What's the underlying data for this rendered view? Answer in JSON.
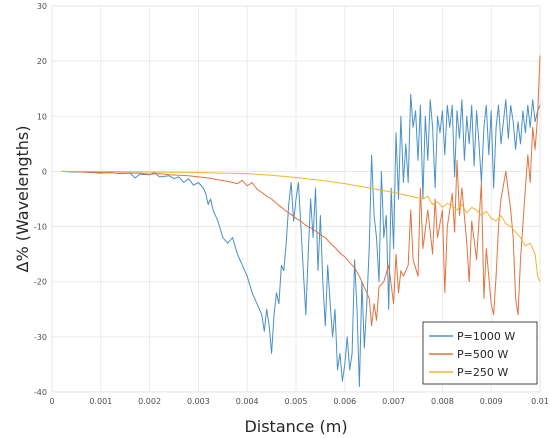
{
  "chart_data": {
    "type": "line",
    "xlabel": "Distance (m)",
    "ylabel": "Δ% (Wavelengths)",
    "xlim": [
      0,
      0.01
    ],
    "ylim": [
      -40,
      30
    ],
    "x_ticks": [
      "0",
      "0.001",
      "0.002",
      "0.003",
      "0.004",
      "0.005",
      "0.006",
      "0.007",
      "0.008",
      "0.009",
      "0.01"
    ],
    "y_ticks": [
      "-40",
      "-30",
      "-20",
      "-10",
      "0",
      "10",
      "20",
      "30"
    ],
    "grid": true,
    "legend_position": "bottom-right",
    "series": [
      {
        "name": "P=1000 W",
        "color": "#4a90c8",
        "points": [
          [
            0.0002,
            0
          ],
          [
            0.0004,
            -0.1
          ],
          [
            0.0006,
            -0.1
          ],
          [
            0.0008,
            -0.2
          ],
          [
            0.001,
            -0.3
          ],
          [
            0.0012,
            -0.2
          ],
          [
            0.0014,
            -0.4
          ],
          [
            0.0016,
            -0.3
          ],
          [
            0.0017,
            -1.2
          ],
          [
            0.0018,
            -0.5
          ],
          [
            0.002,
            -0.6
          ],
          [
            0.0021,
            -0.2
          ],
          [
            0.0022,
            -1
          ],
          [
            0.0024,
            -0.8
          ],
          [
            0.0025,
            -1.3
          ],
          [
            0.0026,
            -1
          ],
          [
            0.0027,
            -2
          ],
          [
            0.0028,
            -1.3
          ],
          [
            0.0029,
            -2.5
          ],
          [
            0.003,
            -2
          ],
          [
            0.0031,
            -3
          ],
          [
            0.00315,
            -4
          ],
          [
            0.0032,
            -6
          ],
          [
            0.00325,
            -5
          ],
          [
            0.0033,
            -7
          ],
          [
            0.0034,
            -9
          ],
          [
            0.0035,
            -12
          ],
          [
            0.0036,
            -13
          ],
          [
            0.0037,
            -12
          ],
          [
            0.0038,
            -15
          ],
          [
            0.0039,
            -17
          ],
          [
            0.004,
            -19
          ],
          [
            0.0041,
            -22
          ],
          [
            0.0042,
            -24
          ],
          [
            0.0043,
            -26
          ],
          [
            0.00435,
            -29
          ],
          [
            0.0044,
            -25
          ],
          [
            0.00445,
            -28
          ],
          [
            0.0045,
            -33
          ],
          [
            0.00455,
            -26
          ],
          [
            0.0046,
            -22
          ],
          [
            0.00465,
            -24
          ],
          [
            0.0047,
            -17
          ],
          [
            0.00475,
            -18
          ],
          [
            0.0048,
            -13
          ],
          [
            0.00485,
            -6
          ],
          [
            0.0049,
            -2
          ],
          [
            0.00495,
            -9
          ],
          [
            0.005,
            -5
          ],
          [
            0.00505,
            -2
          ],
          [
            0.0051,
            -10
          ],
          [
            0.00515,
            -18
          ],
          [
            0.0052,
            -26
          ],
          [
            0.00525,
            -15
          ],
          [
            0.0053,
            -5
          ],
          [
            0.00535,
            -12
          ],
          [
            0.0054,
            -3
          ],
          [
            0.00545,
            -18
          ],
          [
            0.0055,
            -8
          ],
          [
            0.00555,
            -20
          ],
          [
            0.0056,
            -28
          ],
          [
            0.00565,
            -17
          ],
          [
            0.0057,
            -24
          ],
          [
            0.00575,
            -30
          ],
          [
            0.0058,
            -25
          ],
          [
            0.00585,
            -36
          ],
          [
            0.0059,
            -33
          ],
          [
            0.00595,
            -38
          ],
          [
            0.006,
            -35
          ],
          [
            0.00605,
            -30
          ],
          [
            0.0061,
            -36
          ],
          [
            0.00615,
            -33
          ],
          [
            0.0062,
            -16
          ],
          [
            0.00625,
            -25
          ],
          [
            0.0063,
            -39
          ],
          [
            0.00635,
            -20
          ],
          [
            0.0064,
            -32
          ],
          [
            0.00645,
            -24
          ],
          [
            0.0065,
            -14
          ],
          [
            0.00655,
            3
          ],
          [
            0.0066,
            -8
          ],
          [
            0.00665,
            -12
          ],
          [
            0.0067,
            -20
          ],
          [
            0.00675,
            0
          ],
          [
            0.0068,
            -12
          ],
          [
            0.00685,
            -8
          ],
          [
            0.0069,
            -25
          ],
          [
            0.00695,
            -3
          ],
          [
            0.007,
            -14
          ],
          [
            0.00705,
            7
          ],
          [
            0.0071,
            -5
          ],
          [
            0.00715,
            10
          ],
          [
            0.0072,
            -2
          ],
          [
            0.00725,
            5
          ],
          [
            0.0073,
            -2
          ],
          [
            0.00735,
            14
          ],
          [
            0.0074,
            8
          ],
          [
            0.00745,
            11
          ],
          [
            0.0075,
            2
          ],
          [
            0.00755,
            12
          ],
          [
            0.0076,
            -5
          ],
          [
            0.00765,
            10
          ],
          [
            0.0077,
            2
          ],
          [
            0.00775,
            13
          ],
          [
            0.0078,
            8
          ],
          [
            0.00785,
            -3
          ],
          [
            0.0079,
            10
          ],
          [
            0.00795,
            7
          ],
          [
            0.008,
            11
          ],
          [
            0.00805,
            3
          ],
          [
            0.0081,
            12
          ],
          [
            0.00815,
            8
          ],
          [
            0.0082,
            12
          ],
          [
            0.00825,
            -1
          ],
          [
            0.0083,
            11
          ],
          [
            0.00835,
            6
          ],
          [
            0.0084,
            13
          ],
          [
            0.00845,
            2
          ],
          [
            0.0085,
            10
          ],
          [
            0.00855,
            5
          ],
          [
            0.0086,
            12
          ],
          [
            0.00865,
            1
          ],
          [
            0.0087,
            11
          ],
          [
            0.00875,
            5
          ],
          [
            0.0088,
            -2
          ],
          [
            0.00885,
            8
          ],
          [
            0.0089,
            12
          ],
          [
            0.00895,
            3
          ],
          [
            0.009,
            11
          ],
          [
            0.00905,
            -3
          ],
          [
            0.0091,
            8
          ],
          [
            0.00915,
            12
          ],
          [
            0.0092,
            5
          ],
          [
            0.00925,
            9
          ],
          [
            0.0093,
            13
          ],
          [
            0.00935,
            6
          ],
          [
            0.0094,
            12
          ],
          [
            0.00945,
            9
          ],
          [
            0.0095,
            4
          ],
          [
            0.00955,
            9
          ],
          [
            0.0096,
            5
          ],
          [
            0.00965,
            11
          ],
          [
            0.0097,
            7
          ],
          [
            0.00975,
            12
          ],
          [
            0.0098,
            8
          ],
          [
            0.00985,
            13
          ],
          [
            0.0099,
            9
          ],
          [
            0.00995,
            11
          ],
          [
            0.01,
            12
          ]
        ]
      },
      {
        "name": "P=500 W",
        "color": "#e0743e",
        "points": [
          [
            0.0002,
            0
          ],
          [
            0.0006,
            -0.1
          ],
          [
            0.001,
            -0.2
          ],
          [
            0.0014,
            -0.3
          ],
          [
            0.0018,
            -0.3
          ],
          [
            0.002,
            -0.5
          ],
          [
            0.0022,
            -0.4
          ],
          [
            0.0024,
            -0.6
          ],
          [
            0.0026,
            -0.7
          ],
          [
            0.0028,
            -0.8
          ],
          [
            0.003,
            -1
          ],
          [
            0.0032,
            -1.2
          ],
          [
            0.0034,
            -1.5
          ],
          [
            0.0036,
            -1.8
          ],
          [
            0.0038,
            -2.2
          ],
          [
            0.0039,
            -1.6
          ],
          [
            0.004,
            -2.6
          ],
          [
            0.0041,
            -2
          ],
          [
            0.0042,
            -3.2
          ],
          [
            0.0043,
            -3.8
          ],
          [
            0.0044,
            -4.5
          ],
          [
            0.0045,
            -5
          ],
          [
            0.0046,
            -5.8
          ],
          [
            0.0047,
            -6.5
          ],
          [
            0.0048,
            -7.2
          ],
          [
            0.0049,
            -7.8
          ],
          [
            0.005,
            -8.5
          ],
          [
            0.0051,
            -9
          ],
          [
            0.0052,
            -9.8
          ],
          [
            0.0053,
            -10.2
          ],
          [
            0.0054,
            -10.8
          ],
          [
            0.0055,
            -11.5
          ],
          [
            0.0056,
            -12
          ],
          [
            0.0057,
            -13
          ],
          [
            0.0058,
            -13.8
          ],
          [
            0.0059,
            -14.8
          ],
          [
            0.006,
            -15.5
          ],
          [
            0.0061,
            -16.5
          ],
          [
            0.0062,
            -17.5
          ],
          [
            0.0063,
            -19
          ],
          [
            0.0064,
            -21
          ],
          [
            0.0065,
            -23
          ],
          [
            0.00655,
            -28
          ],
          [
            0.0066,
            -24
          ],
          [
            0.00665,
            -27
          ],
          [
            0.0067,
            -21
          ],
          [
            0.0068,
            -20
          ],
          [
            0.0069,
            -17
          ],
          [
            0.007,
            -24
          ],
          [
            0.00705,
            -15
          ],
          [
            0.0071,
            -22
          ],
          [
            0.00715,
            -18
          ],
          [
            0.0072,
            -19
          ],
          [
            0.0073,
            -17
          ],
          [
            0.00735,
            -7
          ],
          [
            0.0074,
            -16
          ],
          [
            0.0075,
            -19
          ],
          [
            0.00755,
            -3
          ],
          [
            0.0076,
            -14
          ],
          [
            0.0077,
            -7
          ],
          [
            0.0078,
            -15
          ],
          [
            0.00785,
            -5
          ],
          [
            0.0079,
            -12
          ],
          [
            0.008,
            -7
          ],
          [
            0.00805,
            -22
          ],
          [
            0.0081,
            -10
          ],
          [
            0.0082,
            -4
          ],
          [
            0.00825,
            -11
          ],
          [
            0.0083,
            2
          ],
          [
            0.00835,
            -8
          ],
          [
            0.0084,
            -3
          ],
          [
            0.0085,
            -13
          ],
          [
            0.00855,
            -20
          ],
          [
            0.0086,
            -9
          ],
          [
            0.0087,
            -16
          ],
          [
            0.0088,
            -2
          ],
          [
            0.00885,
            -23
          ],
          [
            0.0089,
            -14
          ],
          [
            0.009,
            -24
          ],
          [
            0.00905,
            -26
          ],
          [
            0.0091,
            -19
          ],
          [
            0.00915,
            -10
          ],
          [
            0.0092,
            -5
          ],
          [
            0.0093,
            0
          ],
          [
            0.0094,
            -7
          ],
          [
            0.00945,
            -12
          ],
          [
            0.0095,
            -23
          ],
          [
            0.00955,
            -26
          ],
          [
            0.0096,
            -16
          ],
          [
            0.0097,
            -3
          ],
          [
            0.00975,
            3
          ],
          [
            0.0098,
            -2
          ],
          [
            0.00985,
            8
          ],
          [
            0.0099,
            4
          ],
          [
            0.00995,
            10
          ],
          [
            0.01,
            21
          ]
        ]
      },
      {
        "name": "P=250 W",
        "color": "#f2b531",
        "points": [
          [
            0.0002,
            0
          ],
          [
            0.001,
            0
          ],
          [
            0.002,
            -0.1
          ],
          [
            0.003,
            -0.2
          ],
          [
            0.0035,
            -0.3
          ],
          [
            0.004,
            -0.4
          ],
          [
            0.0045,
            -0.7
          ],
          [
            0.005,
            -1.1
          ],
          [
            0.0055,
            -1.6
          ],
          [
            0.006,
            -2.2
          ],
          [
            0.0065,
            -3
          ],
          [
            0.007,
            -3.8
          ],
          [
            0.0072,
            -4.2
          ],
          [
            0.0074,
            -4.6
          ],
          [
            0.0076,
            -5
          ],
          [
            0.0077,
            -4.5
          ],
          [
            0.0078,
            -6
          ],
          [
            0.0079,
            -5.5
          ],
          [
            0.008,
            -6.5
          ],
          [
            0.0081,
            -5.8
          ],
          [
            0.0082,
            -6.2
          ],
          [
            0.0083,
            -7
          ],
          [
            0.0084,
            -6
          ],
          [
            0.0085,
            -7.5
          ],
          [
            0.0086,
            -6.5
          ],
          [
            0.0087,
            -7
          ],
          [
            0.0088,
            -8
          ],
          [
            0.0089,
            -7.2
          ],
          [
            0.009,
            -8.5
          ],
          [
            0.0091,
            -9
          ],
          [
            0.0092,
            -8
          ],
          [
            0.0093,
            -9.5
          ],
          [
            0.0094,
            -10
          ],
          [
            0.0095,
            -11
          ],
          [
            0.0096,
            -12
          ],
          [
            0.0097,
            -13.5
          ],
          [
            0.0098,
            -13
          ],
          [
            0.0099,
            -15
          ],
          [
            0.00995,
            -19
          ],
          [
            0.01,
            -20
          ]
        ]
      }
    ]
  }
}
